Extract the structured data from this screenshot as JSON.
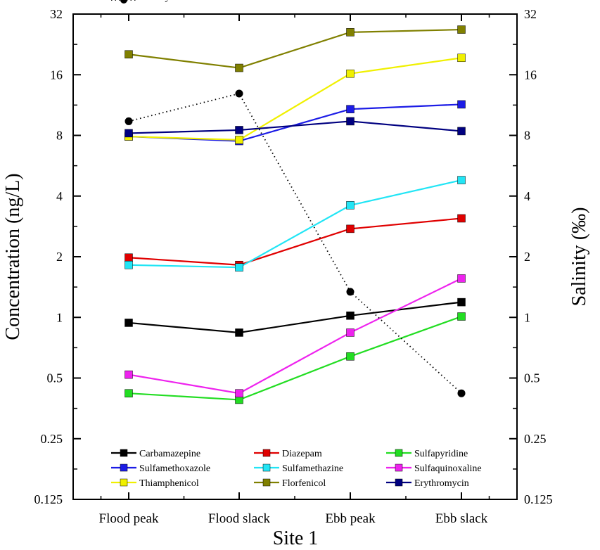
{
  "chart_data": {
    "type": "line",
    "categories": [
      "Flood peak",
      "Flood slack",
      "Ebb peak",
      "Ebb slack"
    ],
    "xlabel": "Site 1",
    "ylabel": "Concentration (ng/L)",
    "y2label": "Salinity (‰)",
    "yscale": "log2",
    "ylim": [
      0.125,
      32
    ],
    "yticks": [
      "0.125",
      "0.25",
      "0.5",
      "1",
      "2",
      "4",
      "8",
      "16",
      "32"
    ],
    "y2ticks": [
      "0.125",
      "0.25",
      "0.5",
      "1",
      "2",
      "4",
      "8",
      "16",
      "32"
    ],
    "legend_position": "bottom-inside",
    "series": [
      {
        "name": "Carbamazepine",
        "color": "#000000",
        "marker": "square",
        "style": "solid",
        "values": [
          0.94,
          0.84,
          1.02,
          1.19
        ]
      },
      {
        "name": "Diazepam",
        "color": "#e00000",
        "marker": "square",
        "style": "solid",
        "values": [
          1.98,
          1.82,
          2.75,
          3.1
        ]
      },
      {
        "name": "Sulfapyridine",
        "color": "#22dd22",
        "marker": "square",
        "style": "solid",
        "values": [
          0.42,
          0.39,
          0.64,
          1.01
        ]
      },
      {
        "name": "Sulfamethoxazole",
        "color": "#1c1ce6",
        "marker": "square",
        "style": "solid",
        "values": [
          7.9,
          7.5,
          10.8,
          11.4
        ]
      },
      {
        "name": "Sulfamethazine",
        "color": "#22e5f5",
        "marker": "square",
        "style": "solid",
        "values": [
          1.82,
          1.77,
          3.6,
          4.8
        ]
      },
      {
        "name": "Sulfaquinoxaline",
        "color": "#ee22ee",
        "marker": "square",
        "style": "solid",
        "values": [
          0.52,
          0.42,
          0.84,
          1.56
        ]
      },
      {
        "name": "Thiamphenicol",
        "color": "#f0f000",
        "marker": "square",
        "style": "solid",
        "values": [
          7.9,
          7.6,
          16.2,
          19.4
        ]
      },
      {
        "name": "Florfenicol",
        "color": "#808000",
        "marker": "square",
        "style": "solid",
        "values": [
          20.2,
          17.3,
          26.0,
          26.8
        ]
      },
      {
        "name": "Erythromycin",
        "color": "#000080",
        "marker": "square",
        "style": "solid",
        "values": [
          8.2,
          8.5,
          9.4,
          8.4
        ]
      },
      {
        "name": "Salinity",
        "color": "#000000",
        "marker": "circle",
        "style": "dotted",
        "axis": "right",
        "values": [
          9.4,
          12.9,
          1.34,
          0.42
        ]
      }
    ]
  }
}
